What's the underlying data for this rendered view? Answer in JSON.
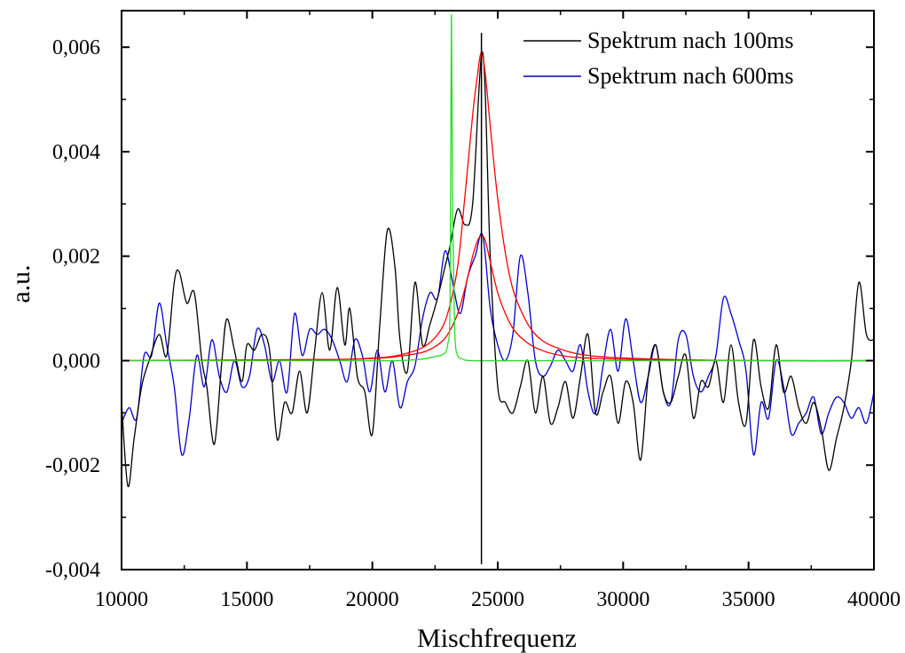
{
  "chart_data": {
    "type": "line",
    "xlabel": "Mischfrequenz",
    "ylabel": "a.u.",
    "xlim": [
      10000,
      40000
    ],
    "ylim": [
      -0.004,
      0.0067
    ],
    "x_ticks": [
      10000,
      15000,
      20000,
      25000,
      30000,
      35000,
      40000
    ],
    "x_tick_labels": [
      "10000",
      "15000",
      "20000",
      "25000",
      "30000",
      "35000",
      "40000"
    ],
    "y_ticks": [
      -0.004,
      -0.002,
      0.0,
      0.002,
      0.004,
      0.006
    ],
    "y_tick_labels": [
      "-0,004",
      "-0,002",
      "0,000",
      "0,002",
      "0,004",
      "0,006"
    ],
    "legend_position": "top-right",
    "series": [
      {
        "name": "Spektrum nach 100ms",
        "color": "#000000",
        "x": [
          10000,
          10250,
          10500,
          10800,
          11100,
          11500,
          11800,
          12100,
          12300,
          12600,
          12900,
          13200,
          13400,
          13700,
          14000,
          14200,
          14500,
          14800,
          15000,
          15300,
          15600,
          15900,
          16200,
          16500,
          16800,
          17100,
          17400,
          17700,
          18000,
          18300,
          18600,
          18900,
          19100,
          19400,
          19700,
          20000,
          20300,
          20600,
          20900,
          21100,
          21400,
          21700,
          22000,
          22300,
          22600,
          22900,
          23100,
          23400,
          23700,
          24000,
          24400,
          24700,
          25000,
          25300,
          25600,
          25900,
          26200,
          26500,
          26800,
          27100,
          27400,
          27700,
          28000,
          28300,
          28600,
          28900,
          29200,
          29500,
          29800,
          30100,
          30400,
          30700,
          31000,
          31300,
          31600,
          31900,
          32200,
          32500,
          32800,
          33100,
          33400,
          33700,
          34000,
          34300,
          34600,
          34900,
          35200,
          35500,
          35800,
          36100,
          36400,
          36700,
          37000,
          37300,
          37600,
          37900,
          38200,
          38500,
          38800,
          39100,
          39400,
          39700,
          40000
        ],
        "y": [
          -0.0008,
          -0.0024,
          -0.0015,
          -0.0005,
          0.0,
          0.0005,
          0.0001,
          0.0015,
          0.0017,
          0.0011,
          0.0013,
          0.0,
          -0.0005,
          -0.0016,
          0.0,
          0.0008,
          0.0002,
          -0.0004,
          0.0003,
          0.0002,
          0.0005,
          0.0002,
          -0.0015,
          -0.0008,
          -0.001,
          -0.0002,
          -0.001,
          0.0002,
          0.0013,
          0.0002,
          0.0014,
          0.0003,
          0.001,
          -0.0003,
          -0.0006,
          -0.0014,
          0.0007,
          0.0025,
          0.0018,
          0.0004,
          -0.0002,
          0.0015,
          0.0003,
          0.0007,
          0.0012,
          0.0018,
          0.0022,
          0.0029,
          0.0026,
          0.003,
          0.0059,
          0.002,
          -0.0005,
          -0.0008,
          -0.001,
          -0.0005,
          0.0,
          -0.001,
          -0.0003,
          -0.0012,
          -0.0009,
          -0.0004,
          -0.0011,
          -0.0003,
          0.0005,
          -0.001,
          -0.0006,
          -0.0003,
          -0.0012,
          -0.0004,
          -0.0008,
          -0.0019,
          -0.0003,
          0.0003,
          -0.0006,
          -0.0008,
          -0.0003,
          0.0001,
          -0.0011,
          -0.0004,
          -0.0005,
          0.0,
          -0.0008,
          0.0003,
          -0.0008,
          -0.0012,
          0.0004,
          -0.0005,
          -0.0009,
          0.0003,
          -0.0006,
          -0.0003,
          -0.0009,
          -0.0012,
          -0.0008,
          -0.0013,
          -0.0021,
          -0.0015,
          -0.0009,
          0.0,
          0.0015,
          0.0005,
          0.0004
        ]
      },
      {
        "name": "Spektrum nach 600ms",
        "color": "#0000cc",
        "x": [
          10000,
          10300,
          10600,
          10900,
          11200,
          11500,
          11800,
          12100,
          12400,
          12700,
          13000,
          13300,
          13600,
          13900,
          14200,
          14500,
          14800,
          15100,
          15400,
          15700,
          16000,
          16300,
          16600,
          16900,
          17200,
          17500,
          17800,
          18100,
          18400,
          18700,
          19000,
          19300,
          19600,
          19900,
          20200,
          20500,
          20800,
          21100,
          21400,
          21700,
          22000,
          22300,
          22600,
          22900,
          23200,
          23500,
          23800,
          24100,
          24400,
          24700,
          25000,
          25300,
          25600,
          25900,
          26200,
          26500,
          26800,
          27100,
          27400,
          27700,
          28000,
          28300,
          28600,
          28900,
          29200,
          29500,
          29800,
          30100,
          30400,
          30700,
          31000,
          31300,
          31600,
          31900,
          32200,
          32500,
          32800,
          33100,
          33400,
          33700,
          34000,
          34300,
          34600,
          34900,
          35200,
          35500,
          35800,
          36100,
          36400,
          36700,
          37000,
          37300,
          37600,
          37900,
          38200,
          38500,
          38800,
          39100,
          39400,
          39700,
          40000
        ],
        "y": [
          -0.0012,
          -0.0009,
          -0.0011,
          0.0001,
          0.0001,
          0.0011,
          0.0003,
          -0.0005,
          -0.0018,
          -0.0011,
          0.0001,
          -0.0005,
          0.0004,
          -0.0003,
          -0.0006,
          0.0,
          -0.0005,
          -0.0003,
          0.0006,
          0.0003,
          -0.0004,
          0.0,
          -0.0006,
          0.0009,
          0.0001,
          0.0006,
          0.0005,
          0.0006,
          0.0004,
          0.0,
          -0.0004,
          0.0004,
          0.0001,
          -0.0006,
          0.0002,
          -0.0006,
          0.0,
          -0.0009,
          -0.0004,
          -0.0001,
          0.0008,
          0.0013,
          0.0012,
          0.0021,
          0.0015,
          0.0009,
          0.0016,
          0.002,
          0.0024,
          0.001,
          0.0003,
          0.0,
          0.0005,
          0.002,
          0.0013,
          0.0,
          -0.0003,
          -0.0001,
          0.0002,
          0.0,
          -0.0002,
          0.0003,
          -0.0006,
          -0.001,
          -0.0001,
          0.0006,
          -0.0002,
          0.0008,
          0.0,
          -0.0008,
          -0.0003,
          0.0003,
          -0.0006,
          -0.0008,
          0.0004,
          0.0005,
          -0.0003,
          -0.0006,
          -0.0003,
          0.0001,
          0.0012,
          0.0009,
          0.0004,
          -0.0002,
          -0.0018,
          -0.0008,
          -0.0011,
          0.0,
          -0.0005,
          -0.0014,
          -0.0012,
          -0.001,
          -0.0007,
          -0.0014,
          -0.001,
          -0.0007,
          -0.0008,
          -0.0011,
          -0.0009,
          -0.0012,
          -0.0006
        ]
      },
      {
        "color": "#22dd22",
        "x": [
          10000,
          20000,
          21000,
          22000,
          22500,
          22800,
          23000,
          23100,
          23150,
          23200,
          23250,
          23300,
          23400,
          23600,
          24000,
          26000,
          30000,
          40000
        ],
        "y": [
          0.0,
          0.0,
          0.0,
          3e-05,
          8e-05,
          0.00012,
          0.0003,
          0.0012,
          0.0066,
          0.003,
          0.0015,
          0.0004,
          0.0001,
          3e-05,
          0.0,
          0.0,
          0.0,
          0.0
        ]
      },
      {
        "color": "#ff0000",
        "x": [
          10000,
          18000,
          20000,
          21000,
          22000,
          22600,
          23000,
          23400,
          23700,
          24000,
          24200,
          24350,
          24500,
          24700,
          25000,
          25400,
          25800,
          26500,
          27500,
          29000,
          32000,
          36000,
          40000
        ],
        "y": [
          0.0,
          2e-05,
          5e-05,
          0.0001,
          0.00025,
          0.0005,
          0.0009,
          0.0018,
          0.0032,
          0.0047,
          0.0055,
          0.0059,
          0.0055,
          0.0045,
          0.0031,
          0.0018,
          0.0011,
          0.0005,
          0.00022,
          8e-05,
          2e-05,
          0.0,
          0.0
        ]
      },
      {
        "color": "#ff0000",
        "x": [
          10000,
          18000,
          20000,
          21000,
          22000,
          22600,
          23000,
          23400,
          23700,
          24000,
          24200,
          24350,
          24500,
          24700,
          25000,
          25400,
          25800,
          26500,
          27500,
          29000,
          32000,
          36000,
          40000
        ],
        "y": [
          0.0,
          2e-05,
          4e-05,
          8e-05,
          0.00016,
          0.0003,
          0.0005,
          0.0009,
          0.0014,
          0.002,
          0.0023,
          0.0024,
          0.0023,
          0.0019,
          0.0013,
          0.0008,
          0.0005,
          0.00025,
          0.0001,
          4e-05,
          1e-05,
          0.0,
          0.0
        ]
      }
    ],
    "vertical_line": {
      "x": 24350,
      "color": "#000000"
    }
  }
}
